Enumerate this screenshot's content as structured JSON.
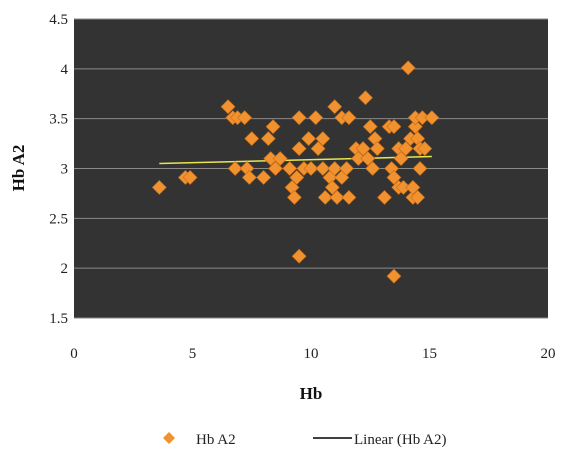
{
  "chart_data": {
    "type": "scatter",
    "xlabel": "Hb",
    "ylabel": "Hb A2",
    "xlim": [
      0,
      20
    ],
    "ylim": [
      1.5,
      4.5
    ],
    "x_ticks": [
      "0",
      "5",
      "10",
      "15",
      "20"
    ],
    "y_ticks": [
      "1.5",
      "2",
      "2.5",
      "3",
      "3.5",
      "4",
      "4.5"
    ],
    "grid": true,
    "legend_position": "bottom",
    "colors": {
      "plot_background": "#333333",
      "grid": "#8a8a8a",
      "marker": "#f0922f",
      "trendline": "#e8e650"
    },
    "series": [
      {
        "name": "Hb A2",
        "marker": "diamond",
        "points": [
          [
            3.6,
            2.81
          ],
          [
            4.7,
            2.91
          ],
          [
            4.9,
            2.91
          ],
          [
            6.5,
            3.62
          ],
          [
            6.7,
            3.51
          ],
          [
            6.8,
            3.0
          ],
          [
            6.9,
            3.51
          ],
          [
            7.2,
            3.51
          ],
          [
            7.3,
            3.0
          ],
          [
            7.4,
            2.91
          ],
          [
            7.5,
            3.3
          ],
          [
            8.0,
            2.91
          ],
          [
            8.2,
            3.3
          ],
          [
            8.3,
            3.1
          ],
          [
            8.4,
            3.42
          ],
          [
            8.5,
            3.0
          ],
          [
            8.7,
            3.1
          ],
          [
            9.1,
            3.0
          ],
          [
            9.2,
            2.81
          ],
          [
            9.3,
            2.71
          ],
          [
            9.4,
            2.91
          ],
          [
            9.5,
            3.51
          ],
          [
            9.5,
            3.2
          ],
          [
            9.5,
            2.12
          ],
          [
            9.7,
            3.0
          ],
          [
            9.9,
            3.3
          ],
          [
            10.0,
            3.0
          ],
          [
            10.2,
            3.51
          ],
          [
            10.3,
            3.2
          ],
          [
            10.5,
            3.3
          ],
          [
            10.5,
            3.0
          ],
          [
            10.6,
            2.71
          ],
          [
            10.8,
            2.91
          ],
          [
            10.9,
            2.81
          ],
          [
            11.0,
            3.0
          ],
          [
            11.0,
            3.62
          ],
          [
            11.1,
            2.71
          ],
          [
            11.3,
            3.51
          ],
          [
            11.3,
            2.91
          ],
          [
            11.5,
            3.0
          ],
          [
            11.6,
            3.51
          ],
          [
            11.6,
            2.71
          ],
          [
            11.9,
            3.2
          ],
          [
            12.0,
            3.1
          ],
          [
            12.2,
            3.2
          ],
          [
            12.3,
            3.71
          ],
          [
            12.4,
            3.1
          ],
          [
            12.5,
            3.42
          ],
          [
            12.6,
            3.0
          ],
          [
            12.7,
            3.3
          ],
          [
            12.8,
            3.2
          ],
          [
            13.1,
            2.71
          ],
          [
            13.3,
            3.42
          ],
          [
            13.4,
            3.0
          ],
          [
            13.5,
            3.42
          ],
          [
            13.5,
            2.91
          ],
          [
            13.5,
            1.92
          ],
          [
            13.7,
            3.2
          ],
          [
            13.7,
            2.81
          ],
          [
            13.8,
            3.1
          ],
          [
            13.9,
            2.81
          ],
          [
            14.0,
            3.2
          ],
          [
            14.1,
            4.01
          ],
          [
            14.2,
            3.3
          ],
          [
            14.3,
            2.71
          ],
          [
            14.3,
            2.81
          ],
          [
            14.4,
            3.42
          ],
          [
            14.4,
            3.51
          ],
          [
            14.5,
            3.3
          ],
          [
            14.6,
            3.2
          ],
          [
            14.6,
            3.0
          ],
          [
            14.7,
            3.51
          ],
          [
            14.8,
            3.2
          ],
          [
            14.5,
            2.71
          ],
          [
            15.1,
            3.51
          ]
        ]
      }
    ],
    "trendline": {
      "name": "Linear (Hb A2)",
      "x": [
        3.6,
        15.1
      ],
      "y": [
        3.05,
        3.12
      ]
    }
  }
}
